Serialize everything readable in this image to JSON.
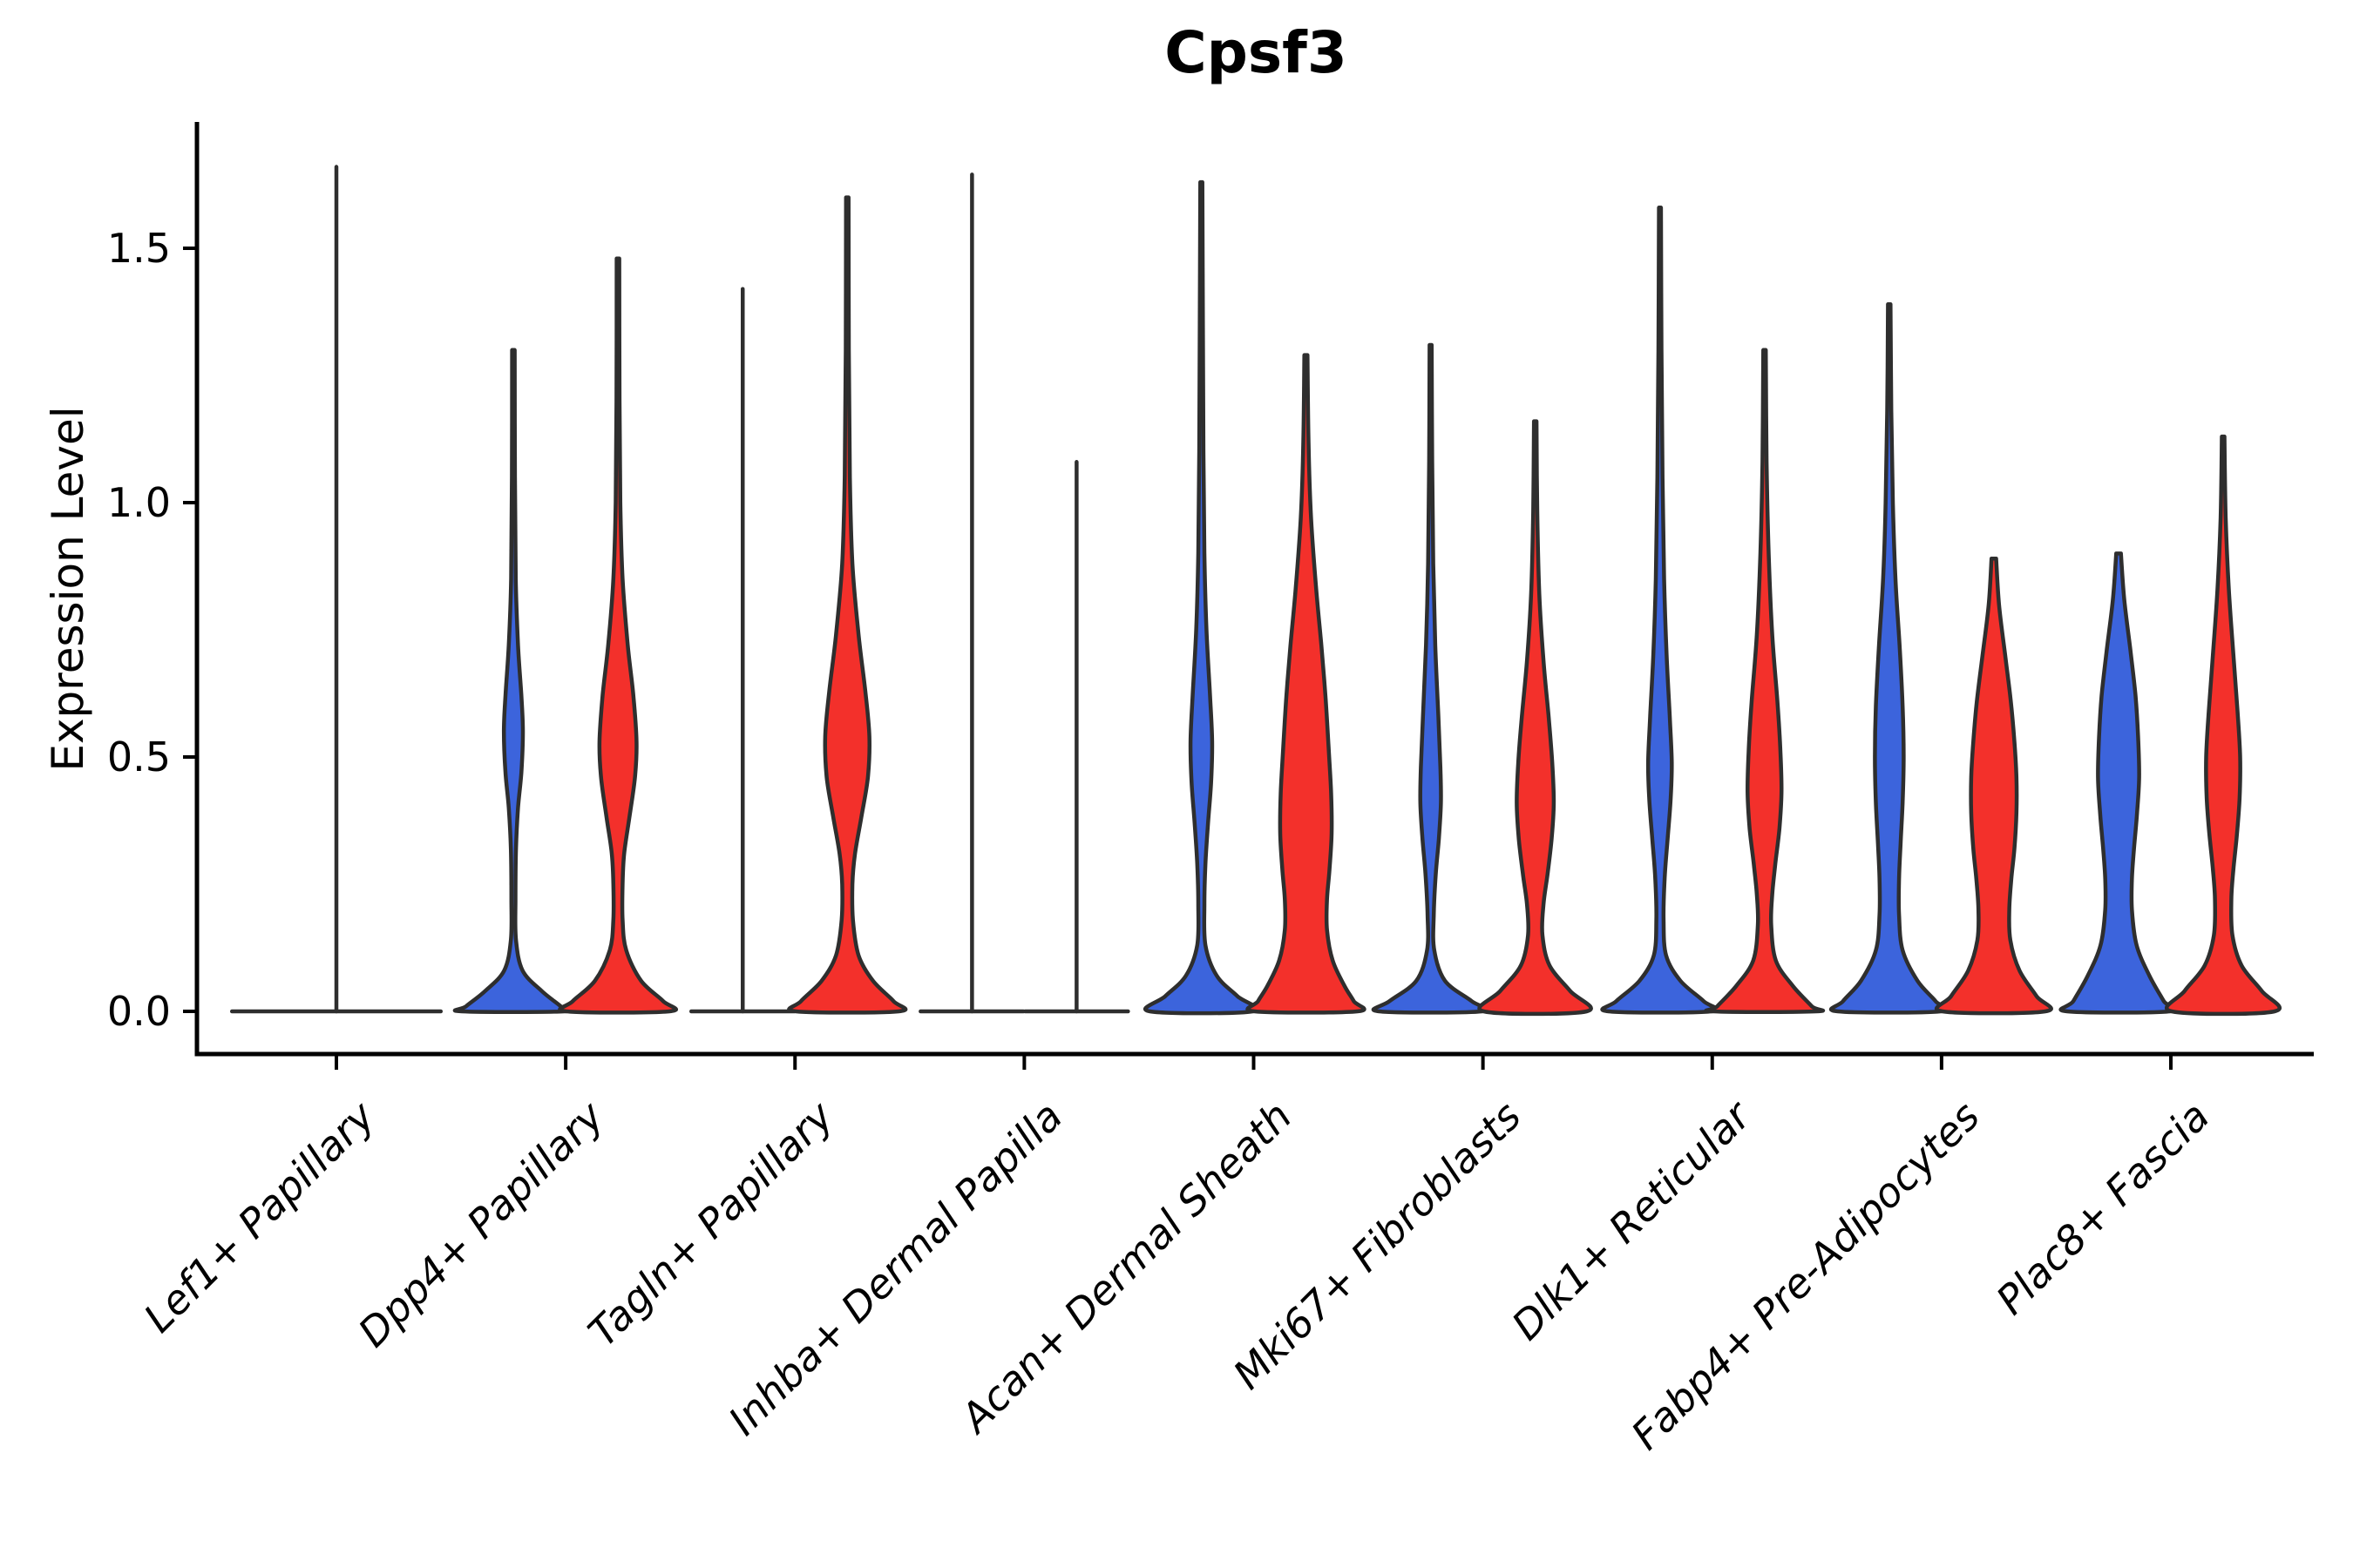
{
  "chart_data": {
    "type": "violin",
    "title": "Cpsf3",
    "xlabel": "",
    "ylabel": "Expression Level",
    "ytick_labels": [
      "0.0",
      "0.5",
      "1.0",
      "1.5"
    ],
    "yticks": [
      0.0,
      0.5,
      1.0,
      1.5
    ],
    "ylim": [
      -0.09,
      1.75
    ],
    "grid": false,
    "legend": "none",
    "colors": {
      "blue": "#3C64DC",
      "red": "#F3302B",
      "outline": "#2E2E2E",
      "axis": "#000000"
    },
    "groups": [
      "blue",
      "red"
    ],
    "categories": [
      "Lef1+ Papillary",
      "Dpp4+ Papillary",
      "Tagln+ Papillary",
      "Inhba+ Dermal Papilla",
      "Acan+ Dermal Sheath",
      "Mki67+ Fibroblasts",
      "Dlk1+ Reticular",
      "Fabp4+ Pre-Adipocytes",
      "Plac8+ Fascia"
    ],
    "violins": [
      {
        "category": "Lef1+ Papillary",
        "violins": [
          {
            "group": "single",
            "slot": "full",
            "color": "outline-only",
            "flat": true,
            "max_expression": 1.66,
            "halfwidth_frac": 2.03
          }
        ]
      },
      {
        "category": "Dpp4+ Papillary",
        "violins": [
          {
            "group": "blue",
            "slot": "blue",
            "color": "blue",
            "flat": false,
            "max_expression": 1.3,
            "profile": [
              [
                1.3,
                0.025
              ],
              [
                1.05,
                0.03
              ],
              [
                0.85,
                0.045
              ],
              [
                0.72,
                0.09
              ],
              [
                0.62,
                0.155
              ],
              [
                0.55,
                0.185
              ],
              [
                0.47,
                0.155
              ],
              [
                0.4,
                0.09
              ],
              [
                0.32,
                0.05
              ],
              [
                0.22,
                0.04
              ],
              [
                0.14,
                0.05
              ],
              [
                0.08,
                0.18
              ],
              [
                0.04,
                0.55
              ],
              [
                0.01,
                0.92
              ],
              [
                0,
                1.0
              ]
            ]
          },
          {
            "group": "red",
            "slot": "red",
            "color": "red",
            "flat": false,
            "max_expression": 1.48,
            "profile": [
              [
                1.48,
                0.025
              ],
              [
                1.2,
                0.03
              ],
              [
                1.0,
                0.045
              ],
              [
                0.85,
                0.09
              ],
              [
                0.72,
                0.19
              ],
              [
                0.62,
                0.3
              ],
              [
                0.53,
                0.36
              ],
              [
                0.46,
                0.33
              ],
              [
                0.38,
                0.22
              ],
              [
                0.31,
                0.12
              ],
              [
                0.25,
                0.09
              ],
              [
                0.18,
                0.09
              ],
              [
                0.12,
                0.16
              ],
              [
                0.06,
                0.45
              ],
              [
                0.02,
                0.88
              ],
              [
                0,
                1.0
              ]
            ]
          }
        ]
      },
      {
        "category": "Tagln+ Papillary",
        "violins": [
          {
            "group": "blue",
            "slot": "blue",
            "color": "blue",
            "flat": true,
            "max_expression": 1.42,
            "halfwidth_frac": 1.0
          },
          {
            "group": "red",
            "slot": "red",
            "color": "red",
            "flat": false,
            "max_expression": 1.6,
            "profile": [
              [
                1.6,
                0.025
              ],
              [
                1.3,
                0.03
              ],
              [
                1.05,
                0.05
              ],
              [
                0.88,
                0.1
              ],
              [
                0.74,
                0.22
              ],
              [
                0.63,
                0.35
              ],
              [
                0.54,
                0.43
              ],
              [
                0.46,
                0.4
              ],
              [
                0.38,
                0.27
              ],
              [
                0.31,
                0.15
              ],
              [
                0.25,
                0.1
              ],
              [
                0.18,
                0.11
              ],
              [
                0.11,
                0.22
              ],
              [
                0.06,
                0.5
              ],
              [
                0.02,
                0.9
              ],
              [
                0,
                1.0
              ]
            ]
          }
        ]
      },
      {
        "category": "Inhba+ Dermal Papilla",
        "violins": [
          {
            "group": "blue",
            "slot": "blue",
            "color": "blue",
            "flat": true,
            "max_expression": 1.645,
            "halfwidth_frac": 1.0
          },
          {
            "group": "red",
            "slot": "red",
            "color": "red",
            "flat": true,
            "max_expression": 1.08,
            "halfwidth_frac": 1.0
          }
        ]
      },
      {
        "category": "Acan+ Dermal Sheath",
        "violins": [
          {
            "group": "blue",
            "slot": "blue",
            "color": "blue",
            "flat": false,
            "max_expression": 1.63,
            "profile": [
              [
                1.63,
                0.02
              ],
              [
                1.35,
                0.03
              ],
              [
                1.1,
                0.04
              ],
              [
                0.9,
                0.06
              ],
              [
                0.75,
                0.1
              ],
              [
                0.62,
                0.17
              ],
              [
                0.53,
                0.21
              ],
              [
                0.45,
                0.19
              ],
              [
                0.37,
                0.13
              ],
              [
                0.29,
                0.08
              ],
              [
                0.21,
                0.06
              ],
              [
                0.13,
                0.08
              ],
              [
                0.07,
                0.3
              ],
              [
                0.03,
                0.7
              ],
              [
                0,
                1.0
              ]
            ]
          },
          {
            "group": "red",
            "slot": "red",
            "color": "red",
            "flat": false,
            "max_expression": 1.29,
            "profile": [
              [
                1.29,
                0.03
              ],
              [
                1.12,
                0.05
              ],
              [
                0.97,
                0.1
              ],
              [
                0.83,
                0.2
              ],
              [
                0.72,
                0.3
              ],
              [
                0.62,
                0.38
              ],
              [
                0.52,
                0.44
              ],
              [
                0.43,
                0.49
              ],
              [
                0.35,
                0.5
              ],
              [
                0.28,
                0.46
              ],
              [
                0.22,
                0.41
              ],
              [
                0.16,
                0.41
              ],
              [
                0.1,
                0.52
              ],
              [
                0.05,
                0.75
              ],
              [
                0.02,
                0.93
              ],
              [
                0,
                1.0
              ]
            ]
          }
        ]
      },
      {
        "category": "Mki67+ Fibroblasts",
        "violins": [
          {
            "group": "blue",
            "slot": "blue",
            "color": "blue",
            "flat": false,
            "max_expression": 1.31,
            "profile": [
              [
                1.31,
                0.02
              ],
              [
                1.08,
                0.03
              ],
              [
                0.88,
                0.05
              ],
              [
                0.72,
                0.09
              ],
              [
                0.58,
                0.15
              ],
              [
                0.48,
                0.19
              ],
              [
                0.41,
                0.2
              ],
              [
                0.34,
                0.16
              ],
              [
                0.27,
                0.1
              ],
              [
                0.19,
                0.06
              ],
              [
                0.12,
                0.07
              ],
              [
                0.06,
                0.28
              ],
              [
                0.02,
                0.8
              ],
              [
                0,
                1.0
              ]
            ]
          },
          {
            "group": "red",
            "slot": "red",
            "color": "red",
            "flat": false,
            "max_expression": 1.16,
            "profile": [
              [
                1.16,
                0.025
              ],
              [
                0.98,
                0.04
              ],
              [
                0.82,
                0.08
              ],
              [
                0.69,
                0.16
              ],
              [
                0.58,
                0.26
              ],
              [
                0.49,
                0.33
              ],
              [
                0.41,
                0.36
              ],
              [
                0.34,
                0.32
              ],
              [
                0.27,
                0.24
              ],
              [
                0.21,
                0.16
              ],
              [
                0.15,
                0.14
              ],
              [
                0.09,
                0.28
              ],
              [
                0.04,
                0.68
              ],
              [
                0,
                1.0
              ]
            ]
          }
        ]
      },
      {
        "category": "Dlk1+ Reticular",
        "violins": [
          {
            "group": "blue",
            "slot": "blue",
            "color": "blue",
            "flat": false,
            "max_expression": 1.58,
            "profile": [
              [
                1.58,
                0.02
              ],
              [
                1.3,
                0.03
              ],
              [
                1.05,
                0.05
              ],
              [
                0.85,
                0.08
              ],
              [
                0.7,
                0.13
              ],
              [
                0.58,
                0.19
              ],
              [
                0.49,
                0.23
              ],
              [
                0.42,
                0.21
              ],
              [
                0.34,
                0.15
              ],
              [
                0.26,
                0.09
              ],
              [
                0.18,
                0.07
              ],
              [
                0.11,
                0.12
              ],
              [
                0.06,
                0.4
              ],
              [
                0.02,
                0.85
              ],
              [
                0,
                1.0
              ]
            ]
          },
          {
            "group": "red",
            "slot": "red",
            "color": "red",
            "flat": false,
            "max_expression": 1.3,
            "profile": [
              [
                1.3,
                0.025
              ],
              [
                1.08,
                0.04
              ],
              [
                0.9,
                0.08
              ],
              [
                0.74,
                0.15
              ],
              [
                0.61,
                0.25
              ],
              [
                0.51,
                0.31
              ],
              [
                0.43,
                0.33
              ],
              [
                0.36,
                0.29
              ],
              [
                0.29,
                0.21
              ],
              [
                0.23,
                0.15
              ],
              [
                0.17,
                0.13
              ],
              [
                0.1,
                0.22
              ],
              [
                0.05,
                0.55
              ],
              [
                0.01,
                0.92
              ],
              [
                0,
                1.0
              ]
            ]
          }
        ]
      },
      {
        "category": "Fabp4+ Pre-Adipocytes",
        "violins": [
          {
            "group": "blue",
            "slot": "blue",
            "color": "blue",
            "flat": false,
            "max_expression": 1.39,
            "profile": [
              [
                1.39,
                0.025
              ],
              [
                1.18,
                0.04
              ],
              [
                1.0,
                0.07
              ],
              [
                0.85,
                0.12
              ],
              [
                0.72,
                0.2
              ],
              [
                0.6,
                0.26
              ],
              [
                0.5,
                0.28
              ],
              [
                0.41,
                0.26
              ],
              [
                0.33,
                0.22
              ],
              [
                0.26,
                0.19
              ],
              [
                0.19,
                0.19
              ],
              [
                0.12,
                0.26
              ],
              [
                0.06,
                0.55
              ],
              [
                0.02,
                0.9
              ],
              [
                0,
                1.0
              ]
            ]
          },
          {
            "group": "red",
            "slot": "red",
            "color": "red",
            "flat": false,
            "max_expression": 0.89,
            "profile": [
              [
                0.89,
                0.045
              ],
              [
                0.8,
                0.1
              ],
              [
                0.7,
                0.22
              ],
              [
                0.61,
                0.33
              ],
              [
                0.53,
                0.4
              ],
              [
                0.46,
                0.44
              ],
              [
                0.39,
                0.44
              ],
              [
                0.32,
                0.4
              ],
              [
                0.26,
                0.34
              ],
              [
                0.2,
                0.3
              ],
              [
                0.14,
                0.32
              ],
              [
                0.08,
                0.5
              ],
              [
                0.03,
                0.83
              ],
              [
                0,
                1.0
              ]
            ]
          }
        ]
      },
      {
        "category": "Plac8+ Fascia",
        "violins": [
          {
            "group": "blue",
            "slot": "blue",
            "color": "blue",
            "flat": false,
            "max_expression": 0.9,
            "profile": [
              [
                0.9,
                0.045
              ],
              [
                0.81,
                0.11
              ],
              [
                0.71,
                0.23
              ],
              [
                0.62,
                0.33
              ],
              [
                0.54,
                0.38
              ],
              [
                0.46,
                0.4
              ],
              [
                0.39,
                0.36
              ],
              [
                0.32,
                0.3
              ],
              [
                0.26,
                0.26
              ],
              [
                0.2,
                0.26
              ],
              [
                0.13,
                0.35
              ],
              [
                0.07,
                0.6
              ],
              [
                0.02,
                0.88
              ],
              [
                0,
                1.0
              ]
            ]
          },
          {
            "group": "red",
            "slot": "red",
            "color": "red",
            "flat": false,
            "max_expression": 1.13,
            "profile": [
              [
                1.13,
                0.025
              ],
              [
                0.97,
                0.05
              ],
              [
                0.83,
                0.11
              ],
              [
                0.7,
                0.2
              ],
              [
                0.59,
                0.28
              ],
              [
                0.5,
                0.33
              ],
              [
                0.42,
                0.32
              ],
              [
                0.35,
                0.27
              ],
              [
                0.28,
                0.2
              ],
              [
                0.22,
                0.16
              ],
              [
                0.15,
                0.18
              ],
              [
                0.09,
                0.36
              ],
              [
                0.04,
                0.75
              ],
              [
                0,
                1.0
              ]
            ]
          }
        ]
      }
    ]
  }
}
